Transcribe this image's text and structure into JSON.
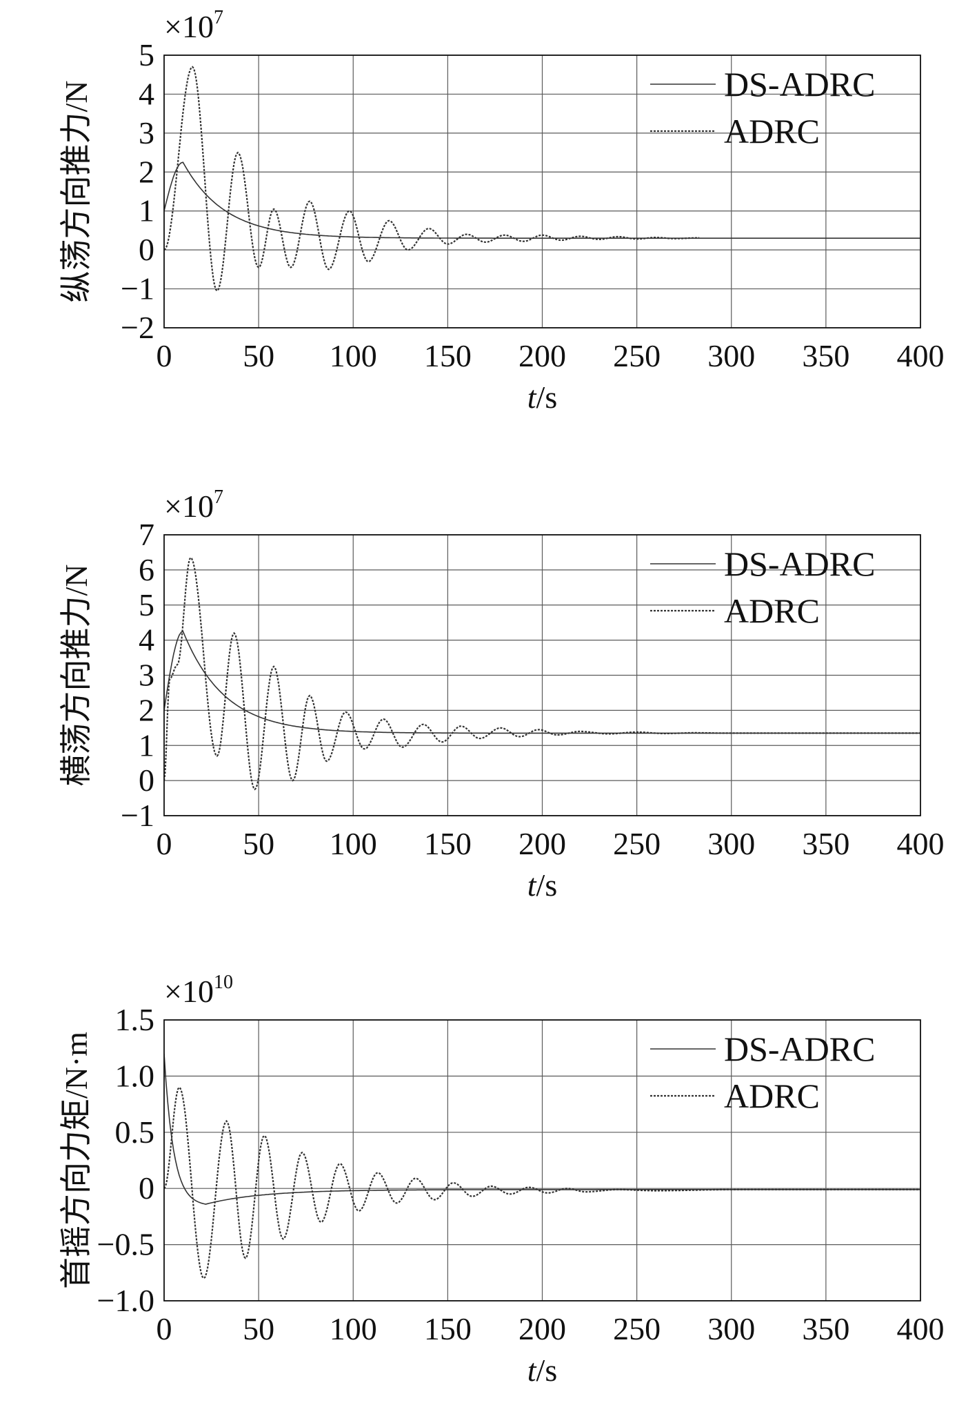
{
  "chart_data": [
    {
      "type": "line",
      "ylabel": "纵荡方向推力/N",
      "xlabel_italic": "t",
      "xlabel_unit": "/s",
      "multiplier": "×10",
      "multiplier_exp": "7",
      "xlim": [
        0,
        400
      ],
      "ylim": [
        -2,
        5
      ],
      "xticks": [
        "0",
        "50",
        "100",
        "150",
        "200",
        "250",
        "300",
        "350",
        "400"
      ],
      "yticks": [
        "−2",
        "−1",
        "0",
        "1",
        "2",
        "3",
        "4",
        "5"
      ],
      "ytick_values": [
        -2,
        -1,
        0,
        1,
        2,
        3,
        4,
        5
      ],
      "grid": true,
      "legend_position": "top-right",
      "series": [
        {
          "name": "DS-ADRC",
          "style": "solid",
          "color": "#333333",
          "model": {
            "kind": "smooth",
            "y0": 1.0,
            "peak": 2.25,
            "tpeak": 10,
            "ss": 0.3,
            "tau": 22
          }
        },
        {
          "name": "ADRC",
          "style": "dotted",
          "color": "#333333",
          "model": {
            "kind": "osc",
            "y0": 0.0,
            "ss": 0.3,
            "extrema": [
              [
                15,
                4.7
              ],
              [
                28,
                -1.05
              ],
              [
                39,
                2.5
              ],
              [
                50,
                -0.45
              ],
              [
                58,
                1.05
              ],
              [
                67,
                -0.45
              ],
              [
                77,
                1.25
              ],
              [
                87,
                -0.5
              ],
              [
                98,
                1.0
              ],
              [
                108,
                -0.3
              ],
              [
                119,
                0.75
              ],
              [
                129,
                0.0
              ],
              [
                140,
                0.55
              ],
              [
                150,
                0.15
              ],
              [
                160,
                0.4
              ],
              [
                170,
                0.2
              ],
              [
                180,
                0.38
              ],
              [
                190,
                0.22
              ],
              [
                200,
                0.38
              ],
              [
                210,
                0.25
              ],
              [
                220,
                0.35
              ],
              [
                230,
                0.27
              ],
              [
                240,
                0.34
              ],
              [
                250,
                0.28
              ],
              [
                260,
                0.32
              ],
              [
                270,
                0.29
              ],
              [
                283,
                0.31
              ]
            ],
            "end_x": 283
          }
        }
      ]
    },
    {
      "type": "line",
      "ylabel": "横荡方向推力/N",
      "xlabel_italic": "t",
      "xlabel_unit": "/s",
      "multiplier": "×10",
      "multiplier_exp": "7",
      "xlim": [
        0,
        400
      ],
      "ylim": [
        -1,
        7
      ],
      "xticks": [
        "0",
        "50",
        "100",
        "150",
        "200",
        "250",
        "300",
        "350",
        "400"
      ],
      "yticks": [
        "−1",
        "0",
        "1",
        "2",
        "3",
        "4",
        "5",
        "6",
        "7"
      ],
      "ytick_values": [
        -1,
        0,
        1,
        2,
        3,
        4,
        5,
        6,
        7
      ],
      "grid": true,
      "legend_position": "top-right",
      "series": [
        {
          "name": "DS-ADRC",
          "style": "solid",
          "color": "#333333",
          "model": {
            "kind": "smooth",
            "y0": 2.0,
            "peak": 4.25,
            "tpeak": 10,
            "ss": 1.35,
            "tau": 22
          }
        },
        {
          "name": "ADRC",
          "style": "dotted",
          "color": "#333333",
          "model": {
            "kind": "osc",
            "y0": 0.0,
            "ss": 1.35,
            "extrema": [
              [
                3,
                2.9
              ],
              [
                7,
                3.3
              ],
              [
                14,
                6.35
              ],
              [
                28,
                0.7
              ],
              [
                37,
                4.2
              ],
              [
                48,
                -0.25
              ],
              [
                58,
                3.25
              ],
              [
                68,
                0.0
              ],
              [
                77,
                2.42
              ],
              [
                86,
                0.55
              ],
              [
                96,
                1.95
              ],
              [
                106,
                0.9
              ],
              [
                116,
                1.75
              ],
              [
                126,
                0.95
              ],
              [
                137,
                1.6
              ],
              [
                147,
                1.1
              ],
              [
                157,
                1.55
              ],
              [
                167,
                1.2
              ],
              [
                178,
                1.5
              ],
              [
                188,
                1.25
              ],
              [
                198,
                1.45
              ],
              [
                208,
                1.3
              ],
              [
                220,
                1.4
              ],
              [
                235,
                1.33
              ],
              [
                250,
                1.38
              ],
              [
                265,
                1.34
              ],
              [
                280,
                1.36
              ],
              [
                300,
                1.35
              ],
              [
                400,
                1.35
              ]
            ],
            "end_x": 400
          }
        }
      ]
    },
    {
      "type": "line",
      "ylabel": "首摇方向力矩/N·m",
      "xlabel_italic": "t",
      "xlabel_unit": "/s",
      "multiplier": "×10",
      "multiplier_exp": "10",
      "xlim": [
        0,
        400
      ],
      "ylim": [
        -1.0,
        1.5
      ],
      "xticks": [
        "0",
        "50",
        "100",
        "150",
        "200",
        "250",
        "300",
        "350",
        "400"
      ],
      "yticks": [
        "−1.0",
        "−0.5",
        "0",
        "0.5",
        "1.0",
        "1.5"
      ],
      "ytick_values": [
        -1.0,
        -0.5,
        0,
        0.5,
        1.0,
        1.5
      ],
      "grid": true,
      "legend_position": "top-right",
      "series": [
        {
          "name": "DS-ADRC",
          "style": "solid",
          "color": "#333333",
          "model": {
            "kind": "decay",
            "y0": 1.2,
            "dip": -0.14,
            "tdip": 22,
            "ss": -0.01,
            "tau1": 5,
            "tau2": 30
          }
        },
        {
          "name": "ADRC",
          "style": "dotted",
          "color": "#333333",
          "model": {
            "kind": "osc",
            "y0": 0.0,
            "ss": -0.01,
            "extrema": [
              [
                8,
                0.9
              ],
              [
                21,
                -0.8
              ],
              [
                33,
                0.6
              ],
              [
                43,
                -0.62
              ],
              [
                53,
                0.47
              ],
              [
                63,
                -0.45
              ],
              [
                73,
                0.32
              ],
              [
                83,
                -0.3
              ],
              [
                93,
                0.22
              ],
              [
                103,
                -0.2
              ],
              [
                113,
                0.14
              ],
              [
                123,
                -0.13
              ],
              [
                133,
                0.09
              ],
              [
                143,
                -0.1
              ],
              [
                153,
                0.05
              ],
              [
                163,
                -0.07
              ],
              [
                173,
                0.02
              ],
              [
                183,
                -0.05
              ],
              [
                193,
                0.01
              ],
              [
                203,
                -0.04
              ],
              [
                213,
                0.0
              ],
              [
                223,
                -0.03
              ],
              [
                240,
                -0.01
              ],
              [
                260,
                -0.02
              ],
              [
                300,
                -0.01
              ],
              [
                400,
                -0.01
              ]
            ],
            "end_x": 400
          }
        }
      ]
    }
  ]
}
